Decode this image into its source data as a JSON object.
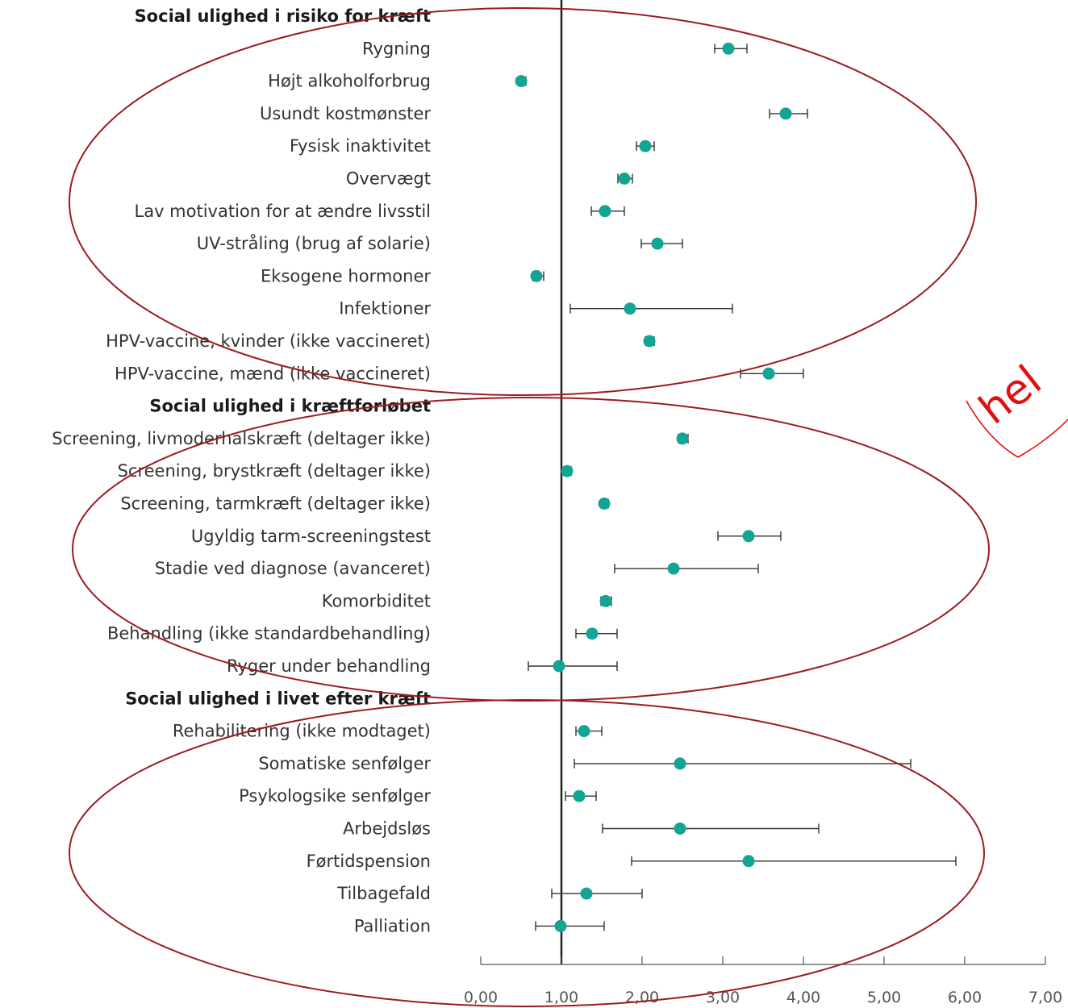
{
  "chart_data": {
    "type": "forest-plot",
    "colors": {
      "point": "#12a594",
      "whisker": "#333333",
      "reference_line": "#222222",
      "annotation": "#e01010",
      "ellipse": "#9b1c22"
    },
    "x_axis": {
      "range": [
        0,
        7
      ],
      "ticks": [
        "0,00",
        "1,00",
        "2,00",
        "3,00",
        "4,00",
        "5,00",
        "6,00",
        "7,00"
      ],
      "reference_value": 1
    },
    "groups": [
      {
        "header": "Social ulighed i risiko for kræft",
        "rows": [
          {
            "label": "Rygning",
            "estimate": 3.07,
            "lo": 2.9,
            "hi": 3.3
          },
          {
            "label": "Højt alkoholforbrug",
            "estimate": 0.5,
            "lo": 0.47,
            "hi": 0.56
          },
          {
            "label": "Usundt kostmønster",
            "estimate": 3.78,
            "lo": 3.58,
            "hi": 4.05
          },
          {
            "label": "Fysisk inaktivitet",
            "estimate": 2.04,
            "lo": 1.93,
            "hi": 2.15
          },
          {
            "label": "Overvægt",
            "estimate": 1.78,
            "lo": 1.7,
            "hi": 1.88
          },
          {
            "label": "Lav motivation for at ændre livsstil",
            "estimate": 1.54,
            "lo": 1.37,
            "hi": 1.78
          },
          {
            "label": "UV-stråling (brug af solarie)",
            "estimate": 2.19,
            "lo": 1.99,
            "hi": 2.5
          },
          {
            "label": "Eksogene hormoner",
            "estimate": 0.69,
            "lo": 0.64,
            "hi": 0.78
          },
          {
            "label": "Infektioner",
            "estimate": 1.85,
            "lo": 1.11,
            "hi": 3.12
          },
          {
            "label": "HPV-vaccine, kvinder (ikke vaccineret)",
            "estimate": 2.09,
            "lo": 2.04,
            "hi": 2.15
          },
          {
            "label": "HPV-vaccine, mænd (ikke vaccineret)",
            "estimate": 3.57,
            "lo": 3.22,
            "hi": 4.0
          }
        ]
      },
      {
        "header": "Social ulighed i kræftforløbet",
        "rows": [
          {
            "label": "Screening, livmoderhalskræft (deltager ikke)",
            "estimate": 2.5,
            "lo": 2.45,
            "hi": 2.57
          },
          {
            "label": "Screening, brystkræft (deltager ikke)",
            "estimate": 1.07,
            "lo": 1.03,
            "hi": 1.12
          },
          {
            "label": "Screening, tarmkræft (deltager ikke)",
            "estimate": 1.53,
            "lo": 1.49,
            "hi": 1.58
          },
          {
            "label": "Ugyldig tarm-screeningstest",
            "estimate": 3.32,
            "lo": 2.94,
            "hi": 3.72
          },
          {
            "label": "Stadie ved diagnose (avanceret)",
            "estimate": 2.39,
            "lo": 1.66,
            "hi": 3.44
          },
          {
            "label": "Komorbiditet",
            "estimate": 1.55,
            "lo": 1.49,
            "hi": 1.62
          },
          {
            "label": "Behandling (ikke standardbehandling)",
            "estimate": 1.38,
            "lo": 1.18,
            "hi": 1.69
          },
          {
            "label": "Ryger under behandling",
            "estimate": 0.97,
            "lo": 0.59,
            "hi": 1.69
          }
        ]
      },
      {
        "header": "Social ulighed i livet efter kræft",
        "rows": [
          {
            "label": "Rehabilitering (ikke modtaget)",
            "estimate": 1.28,
            "lo": 1.18,
            "hi": 1.5
          },
          {
            "label": "Somatiske senfølger",
            "estimate": 2.47,
            "lo": 1.16,
            "hi": 5.33
          },
          {
            "label": "Psykologsike senfølger",
            "estimate": 1.22,
            "lo": 1.05,
            "hi": 1.43
          },
          {
            "label": "Arbejdsløs",
            "estimate": 2.47,
            "lo": 1.51,
            "hi": 4.19
          },
          {
            "label": "Førtidspension",
            "estimate": 3.32,
            "lo": 1.87,
            "hi": 5.89
          },
          {
            "label": "Tilbagefald",
            "estimate": 1.31,
            "lo": 0.88,
            "hi": 2.0
          },
          {
            "label": "Palliation",
            "estimate": 0.99,
            "lo": 0.68,
            "hi": 1.53
          }
        ]
      }
    ],
    "annotation_text": "hel"
  }
}
